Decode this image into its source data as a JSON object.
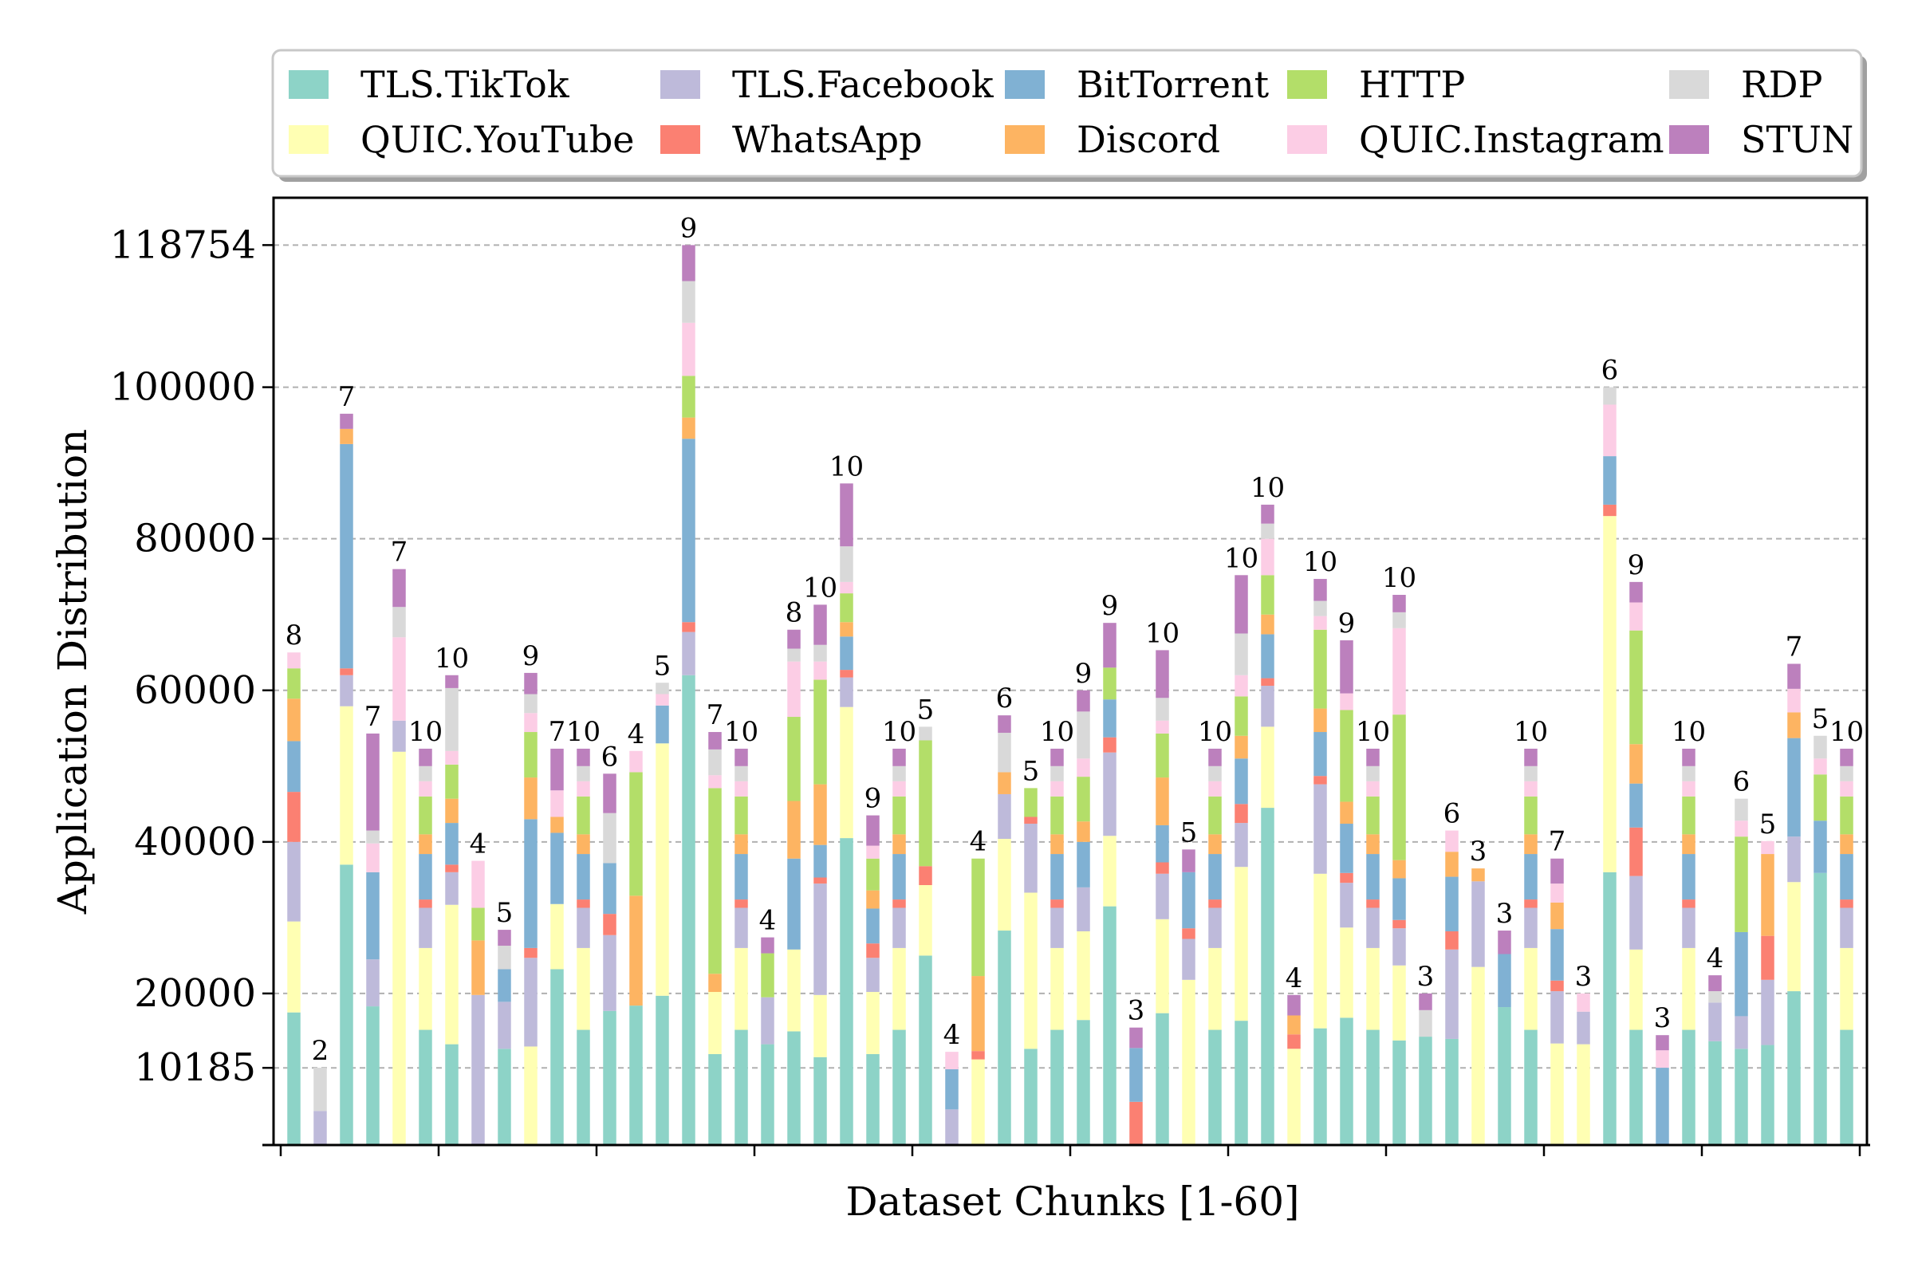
{
  "chart_data": {
    "type": "bar",
    "stacked": true,
    "xlabel": "Dataset Chunks [1-60]",
    "ylabel": "Application Distribution",
    "ylim": [
      0,
      125000
    ],
    "yticks": [
      10185,
      20000,
      40000,
      60000,
      80000,
      100000,
      118754
    ],
    "grid": "horizontal-dashed",
    "legend_position": "top",
    "series": [
      {
        "name": "TLS.TikTok",
        "color": "#8dd3c7"
      },
      {
        "name": "QUIC.YouTube",
        "color": "#ffffb3"
      },
      {
        "name": "TLS.Facebook",
        "color": "#bebada"
      },
      {
        "name": "WhatsApp",
        "color": "#fb8072"
      },
      {
        "name": "BitTorrent",
        "color": "#80b1d3"
      },
      {
        "name": "Discord",
        "color": "#fdb462"
      },
      {
        "name": "HTTP",
        "color": "#b3de69"
      },
      {
        "name": "QUIC.Instagram",
        "color": "#fccde5"
      },
      {
        "name": "RDP",
        "color": "#d9d9d9"
      },
      {
        "name": "STUN",
        "color": "#bc80bd"
      }
    ],
    "bars": [
      {
        "label": "8",
        "totals": [
          17500,
          29500,
          40000,
          46600,
          53300,
          58900,
          62900,
          65000,
          null,
          65000
        ]
      },
      {
        "label": "2",
        "totals": [
          null,
          null,
          4500,
          null,
          null,
          null,
          null,
          null,
          10200,
          null
        ]
      },
      {
        "label": "7",
        "totals": [
          37000,
          57900,
          62000,
          62900,
          92500,
          94500,
          null,
          null,
          null,
          96500
        ]
      },
      {
        "label": "7",
        "totals": [
          18300,
          null,
          24500,
          null,
          36000,
          null,
          null,
          39800,
          41500,
          54300
        ]
      },
      {
        "label": "7",
        "totals": [
          null,
          51900,
          56000,
          null,
          null,
          null,
          null,
          67000,
          71000,
          76000
        ]
      },
      {
        "label": "10",
        "totals": [
          15200,
          26000,
          31300,
          32400,
          38400,
          41000,
          46000,
          48000,
          50000,
          52300
        ]
      },
      {
        "label": "10",
        "totals": [
          13300,
          31700,
          36000,
          37000,
          42500,
          45700,
          50200,
          52000,
          60300,
          62000
        ]
      },
      {
        "label": "4",
        "totals": [
          null,
          null,
          19800,
          null,
          null,
          27000,
          31300,
          37500,
          null,
          null
        ]
      },
      {
        "label": "5",
        "totals": [
          12700,
          null,
          18900,
          null,
          23200,
          null,
          null,
          null,
          26300,
          28400
        ]
      },
      {
        "label": "9",
        "totals": [
          null,
          13000,
          24700,
          26000,
          43000,
          48500,
          54500,
          57000,
          59500,
          62300
        ]
      },
      {
        "label": "7",
        "totals": [
          23200,
          31800,
          null,
          null,
          41200,
          43300,
          null,
          46800,
          null,
          52300
        ]
      },
      {
        "label": "10",
        "totals": [
          15200,
          26000,
          31300,
          32400,
          38400,
          41000,
          46000,
          48000,
          50000,
          52300
        ]
      },
      {
        "label": "6",
        "totals": [
          17700,
          null,
          27700,
          30500,
          37200,
          null,
          null,
          null,
          43800,
          49000
        ]
      },
      {
        "label": "4",
        "totals": [
          18400,
          null,
          null,
          null,
          null,
          32900,
          49200,
          52000,
          null,
          null
        ]
      },
      {
        "label": "5",
        "totals": [
          19700,
          53000,
          null,
          null,
          58000,
          null,
          null,
          59500,
          61000,
          null
        ]
      },
      {
        "label": "9",
        "totals": [
          62000,
          null,
          67700,
          69000,
          93200,
          96000,
          101500,
          108500,
          114000,
          118754
        ]
      },
      {
        "label": "7",
        "totals": [
          12000,
          20200,
          null,
          null,
          null,
          22600,
          47100,
          48800,
          52200,
          54500
        ]
      },
      {
        "label": "10",
        "totals": [
          15200,
          26000,
          31300,
          32400,
          38400,
          41000,
          46000,
          48000,
          50000,
          52300
        ]
      },
      {
        "label": "4",
        "totals": [
          13300,
          null,
          19500,
          null,
          null,
          null,
          25300,
          null,
          null,
          27400
        ]
      },
      {
        "label": "8",
        "totals": [
          15000,
          25800,
          null,
          null,
          37800,
          45400,
          56500,
          63800,
          65500,
          68000
        ]
      },
      {
        "label": "10",
        "totals": [
          11600,
          19800,
          34500,
          35300,
          39600,
          47600,
          61400,
          63800,
          66000,
          71300
        ]
      },
      {
        "label": "10",
        "totals": [
          40500,
          57800,
          61700,
          62700,
          67100,
          69000,
          72800,
          74300,
          79000,
          87300
        ]
      },
      {
        "label": "9",
        "totals": [
          12000,
          20200,
          24700,
          26600,
          31200,
          33600,
          37800,
          39500,
          null,
          43500
        ]
      },
      {
        "label": "10",
        "totals": [
          15200,
          26000,
          31300,
          32400,
          38400,
          41000,
          46000,
          48000,
          50000,
          52300
        ]
      },
      {
        "label": "5",
        "totals": [
          25000,
          34300,
          null,
          36800,
          null,
          null,
          53400,
          null,
          55200,
          null
        ]
      },
      {
        "label": "4",
        "totals": [
          null,
          null,
          4700,
          null,
          10000,
          null,
          null,
          12300,
          null,
          null
        ]
      },
      {
        "label": "4",
        "totals": [
          null,
          11300,
          null,
          12400,
          null,
          22300,
          37800,
          null,
          null,
          null
        ]
      },
      {
        "label": "6",
        "totals": [
          28300,
          40400,
          46300,
          null,
          null,
          49200,
          null,
          null,
          54400,
          56700
        ]
      },
      {
        "label": "5",
        "totals": [
          12700,
          33300,
          42400,
          43300,
          null,
          null,
          47100,
          null,
          null,
          null
        ]
      },
      {
        "label": "10",
        "totals": [
          15200,
          26000,
          31300,
          32400,
          38400,
          41000,
          46000,
          48000,
          50000,
          52300
        ]
      },
      {
        "label": "9",
        "totals": [
          16500,
          28200,
          34000,
          null,
          40000,
          42700,
          48600,
          51000,
          57200,
          60000
        ]
      },
      {
        "label": "9",
        "totals": [
          31500,
          40800,
          51800,
          53800,
          58800,
          null,
          63000,
          null,
          null,
          68900
        ]
      },
      {
        "label": "3",
        "totals": [
          null,
          null,
          null,
          5700,
          12800,
          null,
          null,
          null,
          null,
          15500
        ]
      },
      {
        "label": "10",
        "totals": [
          17400,
          29800,
          35800,
          37300,
          42200,
          48500,
          54300,
          56000,
          59000,
          65300
        ]
      },
      {
        "label": "5",
        "totals": [
          null,
          21800,
          27200,
          28600,
          36000,
          null,
          null,
          null,
          null,
          39000
        ]
      },
      {
        "label": "10",
        "totals": [
          15200,
          26000,
          31300,
          32400,
          38400,
          41000,
          46000,
          48000,
          50000,
          52300
        ]
      },
      {
        "label": "10",
        "totals": [
          16400,
          36700,
          42500,
          45000,
          51000,
          54000,
          59200,
          62000,
          67500,
          75200
        ]
      },
      {
        "label": "10",
        "totals": [
          44500,
          55200,
          60600,
          61600,
          67400,
          70000,
          75200,
          80000,
          82000,
          84500
        ]
      },
      {
        "label": "4",
        "totals": [
          null,
          12700,
          null,
          14600,
          null,
          17100,
          null,
          null,
          null,
          19800
        ]
      },
      {
        "label": "10",
        "totals": [
          15400,
          35800,
          47600,
          48700,
          54500,
          57600,
          68000,
          69800,
          71800,
          74700
        ]
      },
      {
        "label": "9",
        "totals": [
          16800,
          28700,
          34600,
          35900,
          42400,
          45300,
          57400,
          59600,
          null,
          66600
        ]
      },
      {
        "label": "10",
        "totals": [
          15200,
          26000,
          31300,
          32400,
          38400,
          41000,
          46000,
          48000,
          50000,
          52300
        ]
      },
      {
        "label": "10",
        "totals": [
          13800,
          23700,
          28600,
          29700,
          35200,
          37600,
          56800,
          68200,
          70300,
          72600
        ]
      },
      {
        "label": "3",
        "totals": [
          14300,
          null,
          null,
          null,
          null,
          null,
          null,
          null,
          17800,
          20000
        ]
      },
      {
        "label": "6",
        "totals": [
          14000,
          null,
          25800,
          28200,
          35400,
          38700,
          null,
          41500,
          null,
          null
        ]
      },
      {
        "label": "3",
        "totals": [
          null,
          23500,
          34800,
          null,
          null,
          36500,
          null,
          null,
          null,
          null
        ]
      },
      {
        "label": "3",
        "totals": [
          18200,
          null,
          null,
          null,
          25200,
          null,
          null,
          null,
          null,
          28300
        ]
      },
      {
        "label": "10",
        "totals": [
          15200,
          26000,
          31300,
          32400,
          38400,
          41000,
          46000,
          48000,
          50000,
          52300
        ]
      },
      {
        "label": "7",
        "totals": [
          null,
          13400,
          20300,
          21700,
          28500,
          32000,
          null,
          34500,
          null,
          37800
        ]
      },
      {
        "label": "3",
        "totals": [
          null,
          13300,
          17600,
          null,
          null,
          null,
          null,
          20000,
          null,
          null
        ]
      },
      {
        "label": "6",
        "totals": [
          36000,
          83000,
          null,
          84500,
          90900,
          null,
          null,
          97700,
          100000,
          null
        ]
      },
      {
        "label": "9",
        "totals": [
          15200,
          25800,
          35500,
          41900,
          47700,
          52900,
          67900,
          71600,
          null,
          74300
        ]
      },
      {
        "label": "3",
        "totals": [
          null,
          null,
          null,
          null,
          10200,
          null,
          null,
          12500,
          null,
          14500
        ]
      },
      {
        "label": "10",
        "totals": [
          15200,
          26000,
          31300,
          32400,
          38400,
          41000,
          46000,
          48000,
          50000,
          52300
        ]
      },
      {
        "label": "4",
        "totals": [
          13700,
          null,
          18800,
          null,
          null,
          null,
          null,
          null,
          20300,
          22400
        ]
      },
      {
        "label": "6",
        "totals": [
          12700,
          null,
          17000,
          null,
          28100,
          null,
          40700,
          42800,
          45700,
          null
        ]
      },
      {
        "label": "5",
        "totals": [
          13200,
          null,
          21800,
          27600,
          null,
          38400,
          null,
          40100,
          null,
          null
        ]
      },
      {
        "label": "7",
        "totals": [
          20300,
          34700,
          40700,
          null,
          53700,
          57100,
          null,
          60200,
          null,
          63500
        ]
      },
      {
        "label": "5",
        "totals": [
          35900,
          null,
          null,
          null,
          42800,
          null,
          48900,
          51000,
          54000,
          null
        ]
      },
      {
        "label": "10",
        "totals": [
          15200,
          26000,
          31300,
          32400,
          38400,
          41000,
          46000,
          48000,
          50000,
          52300
        ]
      }
    ]
  }
}
